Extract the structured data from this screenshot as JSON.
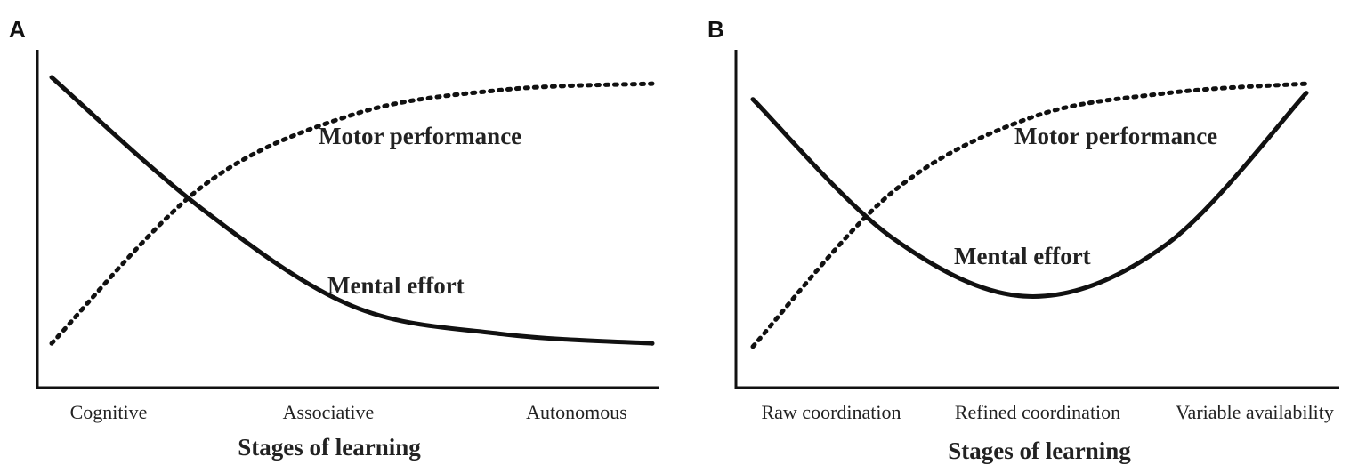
{
  "chart_data": [
    {
      "type": "line",
      "panel": "A",
      "categories": [
        "Cognitive",
        "Associative",
        "Autonomous"
      ],
      "xlabel": "Stages of learning",
      "ylabel": "",
      "series": [
        {
          "name": "Motor performance",
          "style": "dotted",
          "x": [
            0,
            0.5,
            1,
            1.5,
            2
          ],
          "y": [
            0.13,
            0.63,
            0.86,
            0.94,
            0.96
          ]
        },
        {
          "name": "Mental effort",
          "style": "solid",
          "x": [
            0,
            0.5,
            1,
            1.5,
            2
          ],
          "y": [
            0.98,
            0.56,
            0.25,
            0.16,
            0.13
          ]
        }
      ]
    },
    {
      "type": "line",
      "panel": "B",
      "categories": [
        "Raw coordination",
        "Refined coordination",
        "Variable availability"
      ],
      "xlabel": "Stages of learning",
      "ylabel": "",
      "series": [
        {
          "name": "Motor performance",
          "style": "dotted",
          "x": [
            0,
            0.5,
            1,
            1.5,
            2
          ],
          "y": [
            0.12,
            0.61,
            0.85,
            0.93,
            0.96
          ]
        },
        {
          "name": "Mental effort",
          "style": "solid",
          "x": [
            0,
            0.5,
            1,
            1.5,
            2
          ],
          "y": [
            0.91,
            0.47,
            0.28,
            0.45,
            0.93
          ]
        }
      ]
    }
  ]
}
